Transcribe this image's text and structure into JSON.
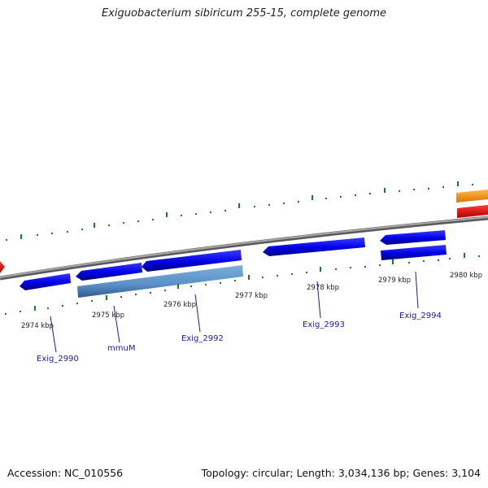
{
  "title": "Exiguobacterium sibiricum 255-15, complete genome",
  "footer": {
    "accession": "Accession: NC_010556",
    "summary": "Topology: circular; Length: 3,034,136 bp; Genes: 3,104"
  },
  "ticks": [
    "2974 kbp",
    "2975 kbp",
    "2976 kbp",
    "2977 kbp",
    "2978 kbp",
    "2979 kbp",
    "2980 kbp"
  ],
  "gene_labels": [
    "Exig_2990",
    "mmuM",
    "Exig_2992",
    "Exig_2993",
    "Exig_2994"
  ],
  "colors": {
    "forward_gene": "#0000e0",
    "highlight_gene": "#5a8fc8",
    "backbone": "#808080",
    "tick_dots": "#1e7a1e",
    "orange_gene": "#ff9a00",
    "red_gene": "#ff0000",
    "label_text": "#1a1a9a"
  }
}
